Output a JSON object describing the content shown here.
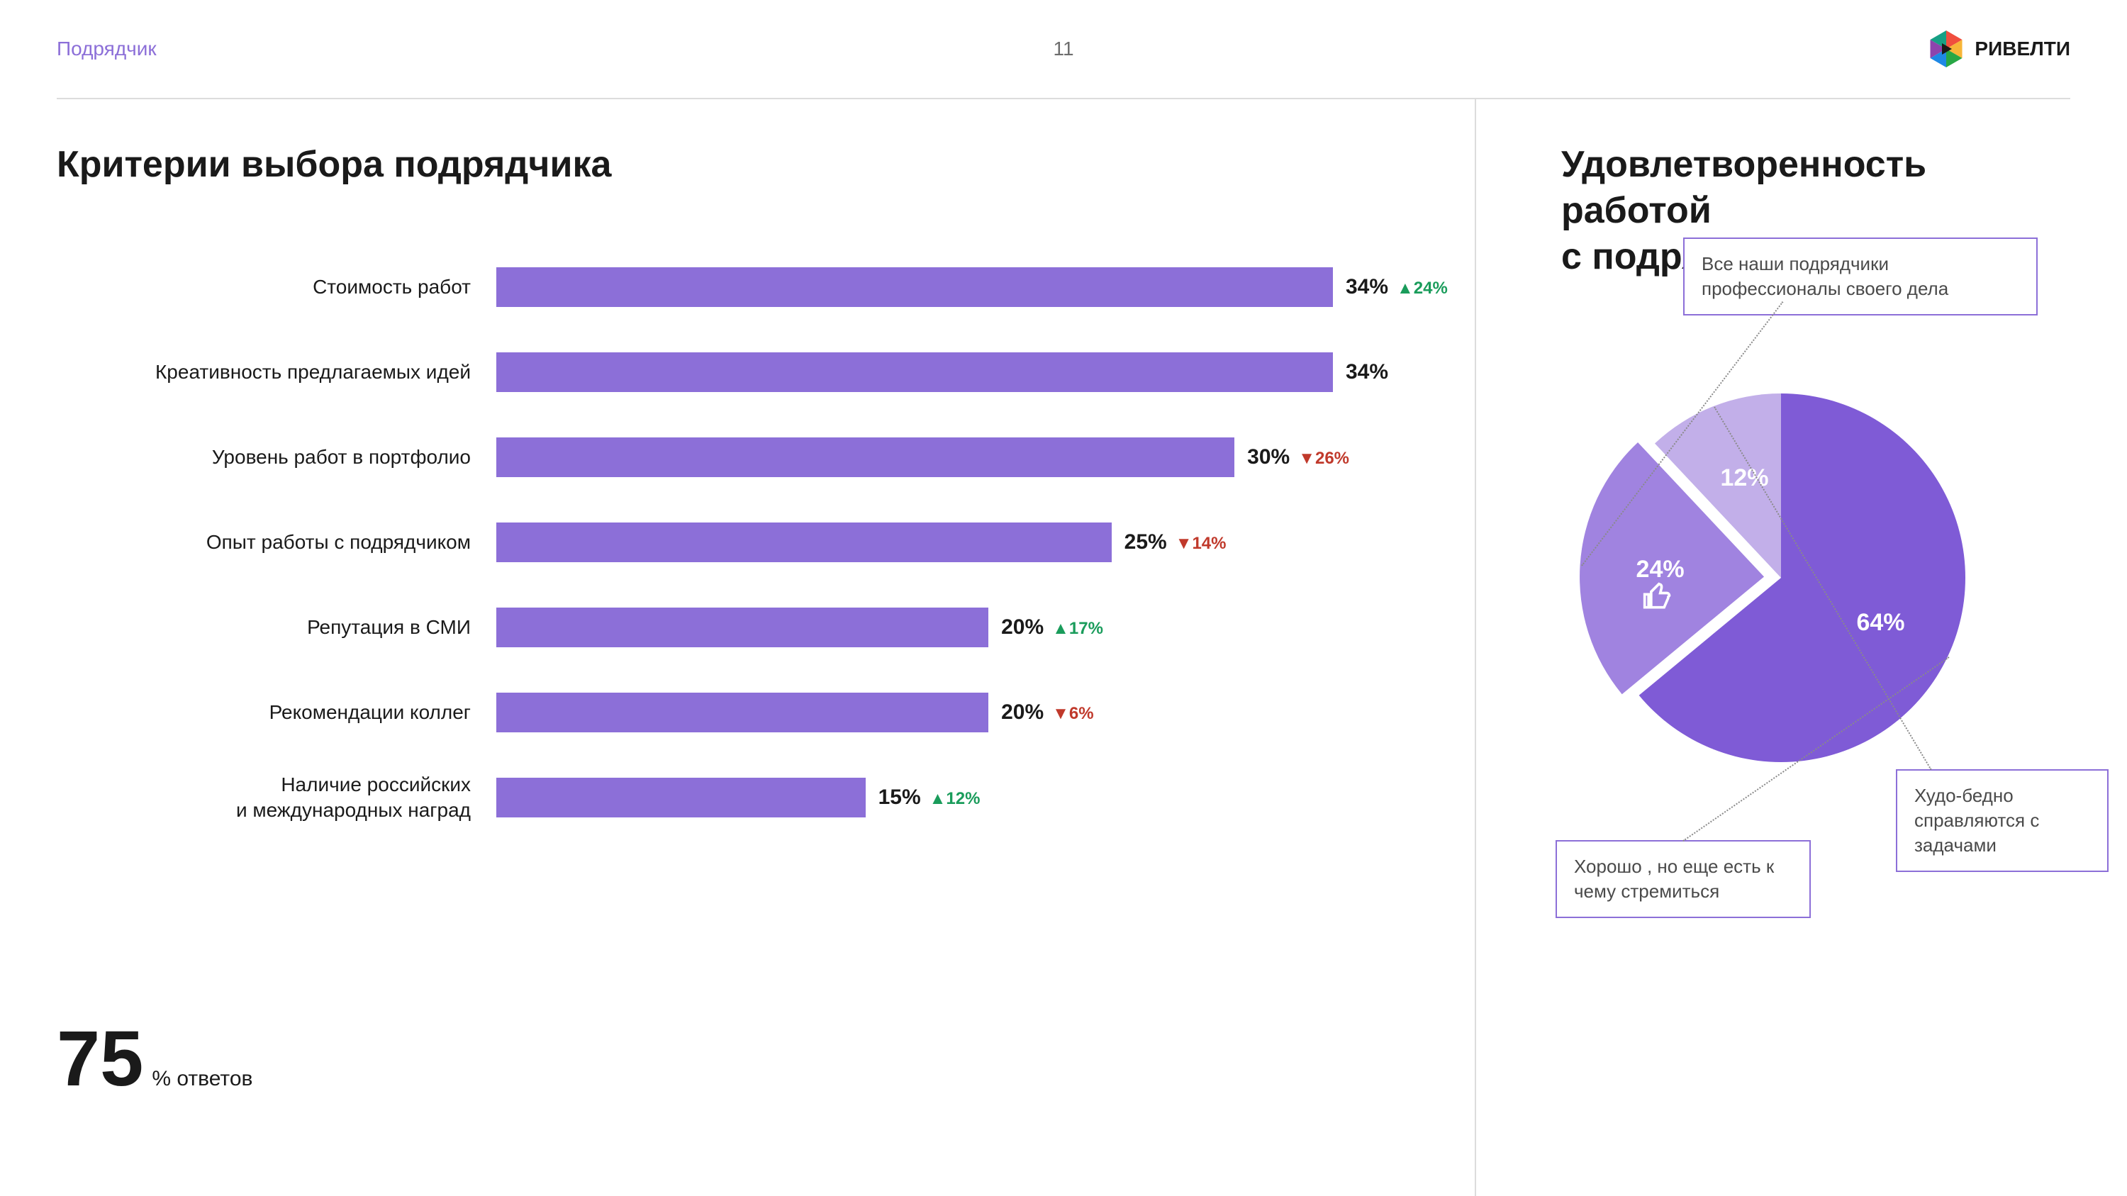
{
  "header": {
    "section": "Подрядчик",
    "page": "11",
    "brand": "РИВЕЛТИ"
  },
  "left_title": "Критерии выбора подрядчика",
  "right_title": "Удовлетворенность работой с подрядчиком",
  "bar_chart": {
    "type": "bar",
    "bar_color": "#8c6fd8",
    "label_fontsize": 28,
    "value_fontsize": 30,
    "delta_fontsize": 24,
    "delta_up_color": "#1a9c5b",
    "delta_down_color": "#c0392b",
    "max_value": 34,
    "rows": [
      {
        "label": "Стоимость работ",
        "value": 34,
        "value_text": "34%",
        "delta_text": "▲24%",
        "delta_dir": "up"
      },
      {
        "label": "Креативность предлагаемых идей",
        "value": 34,
        "value_text": "34%",
        "delta_text": "",
        "delta_dir": ""
      },
      {
        "label": "Уровень работ в портфолио",
        "value": 30,
        "value_text": "30%",
        "delta_text": "▼26%",
        "delta_dir": "down"
      },
      {
        "label": "Опыт работы с подрядчиком",
        "value": 25,
        "value_text": "25%",
        "delta_text": "▼14%",
        "delta_dir": "down"
      },
      {
        "label": "Репутация в СМИ",
        "value": 20,
        "value_text": "20%",
        "delta_text": "▲17%",
        "delta_dir": "up"
      },
      {
        "label": "Рекомендации коллег",
        "value": 20,
        "value_text": "20%",
        "delta_text": "▼6%",
        "delta_dir": "down"
      },
      {
        "label": "Наличие российских и международных наград",
        "value": 15,
        "value_text": "15%",
        "delta_text": "▲12%",
        "delta_dir": "up"
      }
    ]
  },
  "footer": {
    "number": "75",
    "suffix": "% ответов"
  },
  "pie": {
    "type": "pie",
    "radius": 260,
    "center_color": "#ffffff",
    "label_color": "#ffffff",
    "label_fontsize": 34,
    "slices": [
      {
        "label": "64%",
        "value": 64,
        "start_deg": 0,
        "color": "#7f5bd6",
        "explode": 0,
        "callout": "Хорошо , но еще есть к чему стремиться"
      },
      {
        "label": "24%",
        "value": 24,
        "start_deg": 230.4,
        "color": "#a083e0",
        "explode": 24,
        "callout": "Все наши подрядчики профессионалы своего дела"
      },
      {
        "label": "12%",
        "value": 12,
        "start_deg": 316.8,
        "color": "#c2afe9",
        "explode": 0,
        "callout": "Худо-бедно справляются с задачами"
      }
    ],
    "callout_border": "#8c6fd8",
    "leader_color": "#8a8a8a"
  },
  "logo_colors": [
    "#f04e3e",
    "#f7b538",
    "#28a745",
    "#1e88e5",
    "#8e44ad",
    "#16a085"
  ]
}
